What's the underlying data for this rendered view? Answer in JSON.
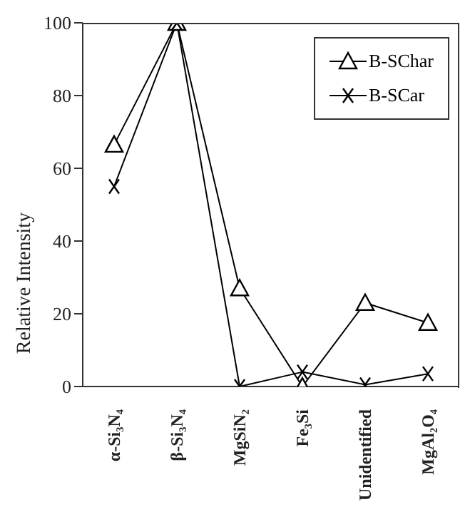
{
  "chart_data": {
    "type": "line",
    "ylabel": "Relative Intensity",
    "categories": [
      "α-Si₃N₄",
      "β-Si₃N₄",
      "MgSiN₂",
      "Fe₃Si",
      "Unidentified",
      "MgAl₂O₄"
    ],
    "series": [
      {
        "name": "B-SChar",
        "color": "#000000",
        "marker": "triangle",
        "values": [
          66.5,
          100,
          27,
          0,
          23,
          17.5
        ]
      },
      {
        "name": "B-SCar",
        "color": "#000000",
        "marker": "cross",
        "values": [
          55,
          100,
          0,
          4,
          0.5,
          3.5
        ]
      }
    ],
    "ylim": [
      0,
      100
    ],
    "yticks": [
      0,
      20,
      40,
      60,
      80,
      100
    ],
    "grid": false,
    "legend": "top right",
    "line_style": "solid"
  }
}
